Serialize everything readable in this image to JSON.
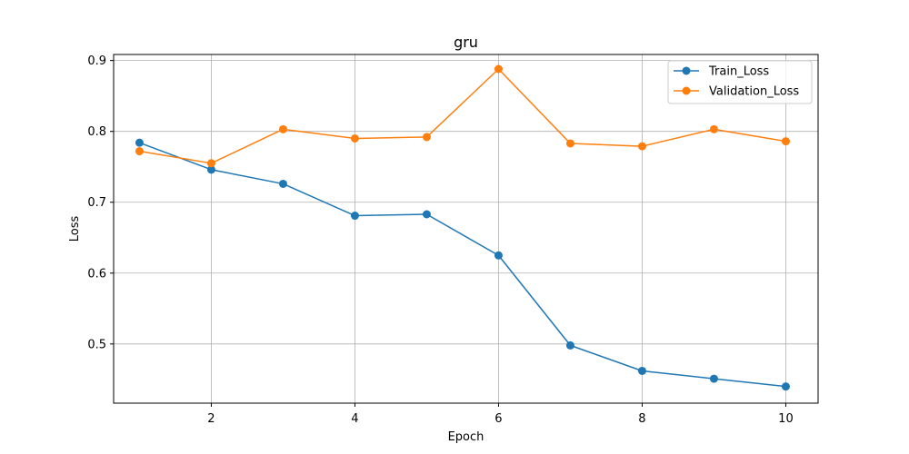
{
  "chart_data": {
    "type": "line",
    "title": "gru",
    "xlabel": "Epoch",
    "ylabel": "Loss",
    "xlim": [
      0.64,
      10.45
    ],
    "ylim": [
      0.4165,
      0.9085
    ],
    "xticks": [
      2,
      4,
      6,
      8,
      10
    ],
    "xtick_labels": [
      "2",
      "4",
      "6",
      "8",
      "10"
    ],
    "yticks": [
      0.5,
      0.6,
      0.7,
      0.8,
      0.9
    ],
    "ytick_labels": [
      "0.5",
      "0.6",
      "0.7",
      "0.8",
      "0.9"
    ],
    "grid": true,
    "legend_position": "top-right",
    "x": [
      1,
      2,
      3,
      4,
      5,
      6,
      7,
      8,
      9,
      10
    ],
    "series": [
      {
        "name": "Train_Loss",
        "color": "#1f77b4",
        "values": [
          0.784,
          0.746,
          0.726,
          0.681,
          0.683,
          0.625,
          0.498,
          0.462,
          0.451,
          0.44
        ]
      },
      {
        "name": "Validation_Loss",
        "color": "#ff7f0e",
        "values": [
          0.772,
          0.755,
          0.803,
          0.79,
          0.792,
          0.888,
          0.783,
          0.779,
          0.803,
          0.786
        ]
      }
    ]
  }
}
